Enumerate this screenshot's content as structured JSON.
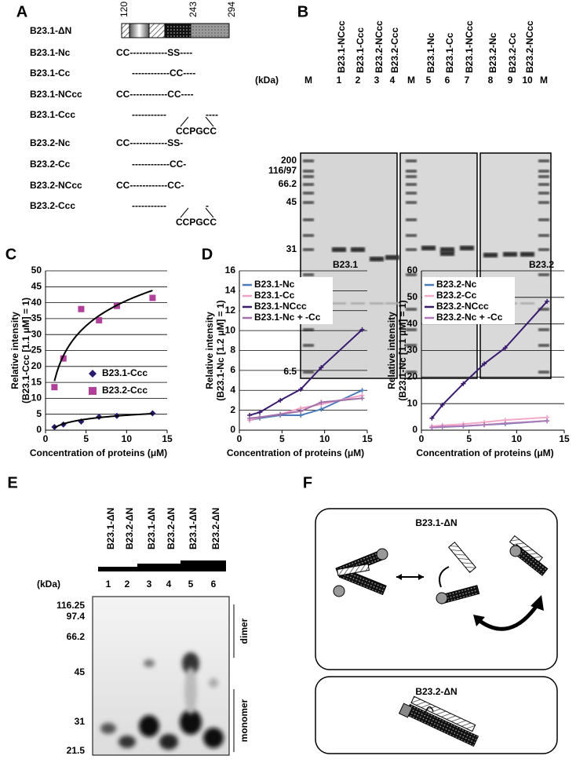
{
  "panels": {
    "a": {
      "letter": "A",
      "ruler": [
        "120",
        "243",
        "294"
      ],
      "constructs": [
        {
          "name": "B23.1-ΔN"
        },
        {
          "name": "B23.1-Nc",
          "seq": [
            "CC------------SS----"
          ]
        },
        {
          "name": "B23.1-Cc",
          "seq": [
            "------------CC----"
          ]
        },
        {
          "name": "B23.1-NCcc",
          "seq": [
            "CC------------CC----"
          ]
        },
        {
          "name": "B23.1-Ccc",
          "seq": [
            "-----------",
            "----"
          ],
          "insert": "CCPGCC"
        },
        {
          "name": "B23.2-Nc",
          "seq": [
            "CC------------SS-"
          ]
        },
        {
          "name": "B23.2-Cc",
          "seq": [
            "------------CC-"
          ]
        },
        {
          "name": "B23.2-NCcc",
          "seq": [
            "CC------------CC-"
          ]
        },
        {
          "name": "B23.2-Ccc",
          "seq": [
            "-----------",
            "-"
          ],
          "insert": "CCPGCC"
        }
      ]
    },
    "b": {
      "letter": "B",
      "unit": "(kDa)",
      "markers": [
        "200",
        "116/97",
        "66.2",
        "45",
        "31",
        "14.4",
        "6.5"
      ],
      "lanes": [
        {
          "id": "M"
        },
        {
          "id": "1",
          "name": "B23.1-NCcc"
        },
        {
          "id": "2",
          "name": "B23.1-Ccc"
        },
        {
          "id": "3",
          "name": "B23.2-NCcc"
        },
        {
          "id": "4",
          "name": "B23.2-Ccc"
        },
        {
          "id": "M"
        },
        {
          "id": "5",
          "name": "B23.1-Nc"
        },
        {
          "id": "6",
          "name": "B23.1-Cc"
        },
        {
          "id": "7",
          "name": "B23.1-NCcc"
        },
        {
          "id": "8",
          "name": "B23.2-Nc"
        },
        {
          "id": "9",
          "name": "B23.2-Cc"
        },
        {
          "id": "10",
          "name": "B23.2-NCcc"
        },
        {
          "id": "M"
        }
      ]
    },
    "e": {
      "letter": "E",
      "unit": "(kDa)",
      "markers": [
        "116.25",
        "97.4",
        "66.2",
        "45",
        "31",
        "21.5"
      ],
      "lanes": [
        {
          "id": "1",
          "name": "B23.1-ΔN"
        },
        {
          "id": "2",
          "name": "B23.2-ΔN"
        },
        {
          "id": "3",
          "name": "B23.1-ΔN"
        },
        {
          "id": "4",
          "name": "B23.2-ΔN"
        },
        {
          "id": "5",
          "name": "B23.1-ΔN"
        },
        {
          "id": "6",
          "name": "B23.2-ΔN"
        }
      ],
      "labels": [
        "dimer",
        "monomer"
      ]
    },
    "f": {
      "letter": "F",
      "boxes": [
        "B23.1-ΔN",
        "B23.2-ΔN"
      ]
    }
  },
  "chart_data": [
    {
      "type": "scatter",
      "panel": "C",
      "x_label": "Concentration of proteins (μM)",
      "y_label": [
        "Relative intensity",
        "(B23.1-Ccc [1.1 μM] = 1)"
      ],
      "x": [
        1.1,
        2.2,
        4.4,
        6.6,
        8.8,
        13.2
      ],
      "xlim": [
        0,
        15
      ],
      "xticks": [
        0,
        5,
        10,
        15
      ],
      "ylim": [
        0,
        50
      ],
      "yticks": [
        0,
        5,
        10,
        15,
        20,
        25,
        30,
        35,
        40,
        45,
        50
      ],
      "grid": true,
      "trendline": "log",
      "legend": "center right",
      "series": [
        {
          "name": "B23.1-Ccc",
          "color": "#2b1a6b",
          "marker": "diamond",
          "values": [
            1,
            1.8,
            2.7,
            4.2,
            4.5,
            5.3
          ]
        },
        {
          "name": "B23.2-Ccc",
          "color": "#b0409a",
          "marker": "square",
          "values": [
            13.5,
            22.5,
            38,
            34.5,
            39,
            41.5
          ]
        }
      ]
    },
    {
      "type": "line",
      "panel": "D",
      "title": "B23.1",
      "x_label": "Concentration of proteins (μM)",
      "y_label": [
        "Relative intensity",
        "(B23.1-Nc [1.2 μM] = 1)"
      ],
      "x": [
        1.2,
        2.4,
        4.8,
        7.2,
        9.6,
        14.4
      ],
      "xlim": [
        0,
        15
      ],
      "xticks": [
        0,
        5,
        10,
        15
      ],
      "ylim": [
        0,
        16
      ],
      "yticks": [
        0,
        2,
        4,
        6,
        8,
        10,
        12,
        14,
        16
      ],
      "grid": true,
      "legend": "upper left",
      "series": [
        {
          "name": "B23.1-Nc",
          "color": "#4a7ab8",
          "values": [
            1,
            1.2,
            1.5,
            1.5,
            2.1,
            4
          ]
        },
        {
          "name": "B23.1-Cc",
          "color": "#f0a0c4",
          "values": [
            1,
            1.3,
            1.6,
            2.2,
            2.6,
            3.5
          ]
        },
        {
          "name": "B23.1-NCcc",
          "color": "#3a1a6e",
          "values": [
            1.5,
            1.8,
            3,
            4.1,
            6.3,
            10.1
          ]
        },
        {
          "name": "B23.1-Nc + -Cc",
          "color": "#a070a8",
          "values": [
            1.2,
            1.3,
            1.6,
            1.9,
            2.8,
            3.2
          ]
        }
      ]
    },
    {
      "type": "line",
      "title": "B23.2",
      "x_label": "Concentration of proteins (μM)",
      "y_label": [
        "Relative intensity",
        "(B23.1-Nc [1.1 μM] = 1)"
      ],
      "x": [
        1.1,
        2.2,
        4.4,
        6.6,
        8.8,
        13.2
      ],
      "xlim": [
        0,
        15
      ],
      "xticks": [
        0,
        5,
        10,
        15
      ],
      "ylim": [
        0,
        60
      ],
      "yticks": [
        0,
        10,
        20,
        30,
        40,
        50,
        60
      ],
      "grid": true,
      "legend": "upper left",
      "series": [
        {
          "name": "B23.2-Nc",
          "color": "#4a7ab8",
          "values": [
            1,
            1.2,
            1.5,
            2,
            2.4,
            3.5
          ]
        },
        {
          "name": "B23.2-Cc",
          "color": "#f4a8c8",
          "values": [
            1.5,
            1.8,
            2.3,
            3,
            3.8,
            4.8
          ]
        },
        {
          "name": "B23.2-NCcc",
          "color": "#3a1a6e",
          "values": [
            4.5,
            9.5,
            17.5,
            25,
            31,
            48.5
          ]
        },
        {
          "name": "B23.2-Nc + -Cc",
          "color": "#b07ab8",
          "values": [
            1,
            1.3,
            1.6,
            2,
            2.6,
            3.5
          ]
        }
      ]
    }
  ]
}
